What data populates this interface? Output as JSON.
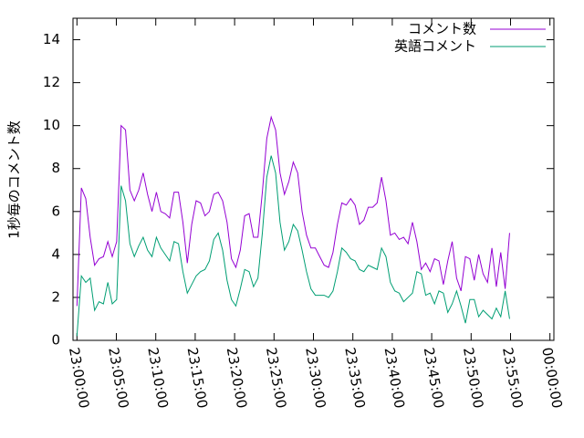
{
  "chart_data": {
    "type": "line",
    "ylabel": "1秒毎のコメント数",
    "legend": "top right",
    "x": [
      0,
      0.56,
      1.12,
      1.68,
      2.24,
      2.8,
      3.36,
      3.92,
      4.48,
      5.04,
      5.6,
      6.16,
      6.72,
      7.28,
      7.84,
      8.4,
      8.96,
      9.52,
      10.08,
      10.64,
      11.2,
      11.76,
      12.32,
      12.88,
      13.44,
      14,
      14.56,
      15.12,
      15.68,
      16.24,
      16.8,
      17.36,
      17.92,
      18.48,
      19.04,
      19.6,
      20.16,
      20.72,
      21.28,
      21.84,
      22.4,
      22.96,
      23.52,
      24.08,
      24.64,
      25.2,
      25.76,
      26.32,
      26.88,
      27.44,
      28,
      28.56,
      29.12,
      29.68,
      30.24,
      30.8,
      31.36,
      31.92,
      32.48,
      33.04,
      33.6,
      34.16,
      34.72,
      35.28,
      35.84,
      36.4,
      36.96,
      37.52,
      38.08,
      38.64,
      39.2,
      39.76,
      40.32,
      40.88,
      41.44,
      42,
      42.56,
      43.12,
      43.68,
      44.24,
      44.8,
      45.36,
      45.92,
      46.48,
      47.04,
      47.6,
      48.16,
      48.72,
      49.28,
      49.84,
      50.4,
      50.96,
      51.52,
      52.08,
      52.64,
      53.2,
      53.76,
      54.32,
      54.88
    ],
    "series": [
      {
        "name": "コメント数",
        "color": "#9400d3",
        "values": [
          1.6,
          7.1,
          6.6,
          4.8,
          3.5,
          3.8,
          3.9,
          4.6,
          3.9,
          4.6,
          10.0,
          9.8,
          7.0,
          6.5,
          7.0,
          7.8,
          6.8,
          6.0,
          6.9,
          6.0,
          5.9,
          5.7,
          6.9,
          6.9,
          5.5,
          3.6,
          5.4,
          6.5,
          6.4,
          5.8,
          6.0,
          6.8,
          6.9,
          6.5,
          5.5,
          3.8,
          3.4,
          4.2,
          5.8,
          5.9,
          4.8,
          4.8,
          6.9,
          9.4,
          10.4,
          9.8,
          7.8,
          6.8,
          7.4,
          8.3,
          7.8,
          6.0,
          4.9,
          4.3,
          4.3,
          3.9,
          3.5,
          3.4,
          4.1,
          5.4,
          6.4,
          6.3,
          6.6,
          6.3,
          5.4,
          5.6,
          6.2,
          6.2,
          6.4,
          7.6,
          6.5,
          4.9,
          5.0,
          4.7,
          4.8,
          4.5,
          5.5,
          4.6,
          3.3,
          3.6,
          3.2,
          3.8,
          3.7,
          2.6,
          3.7,
          4.6,
          2.9,
          2.3,
          3.9,
          3.8,
          2.8,
          4.0,
          3.1,
          2.7,
          4.3,
          2.5,
          4.1,
          2.4,
          5.0
        ]
      },
      {
        "name": "英語コメント",
        "color": "#009e73",
        "values": [
          0.2,
          3.0,
          2.7,
          2.9,
          1.4,
          1.8,
          1.7,
          2.7,
          1.7,
          1.9,
          7.2,
          6.5,
          4.5,
          3.9,
          4.4,
          4.8,
          4.2,
          3.9,
          4.8,
          4.3,
          4.0,
          3.7,
          4.6,
          4.5,
          3.2,
          2.2,
          2.6,
          3.0,
          3.2,
          3.3,
          3.7,
          4.7,
          5.0,
          4.2,
          2.8,
          1.9,
          1.6,
          2.4,
          3.3,
          3.2,
          2.5,
          2.9,
          5.0,
          7.6,
          8.6,
          7.8,
          5.5,
          4.2,
          4.6,
          5.4,
          5.1,
          4.2,
          3.2,
          2.4,
          2.1,
          2.1,
          2.1,
          2.0,
          2.3,
          3.2,
          4.3,
          4.1,
          3.8,
          3.7,
          3.3,
          3.2,
          3.5,
          3.4,
          3.3,
          4.3,
          3.9,
          2.7,
          2.3,
          2.2,
          1.8,
          2.0,
          2.2,
          3.2,
          3.1,
          2.1,
          2.2,
          1.7,
          2.3,
          2.2,
          1.3,
          1.7,
          2.3,
          1.6,
          0.8,
          1.9,
          1.9,
          1.1,
          1.4,
          1.2,
          1.0,
          1.5,
          1.1,
          2.3,
          1.0
        ]
      }
    ],
    "xlim": [
      -0.5,
      60.5
    ],
    "xticks": [
      {
        "value": 0,
        "label": "23:00:00"
      },
      {
        "value": 5,
        "label": "23:05:00"
      },
      {
        "value": 10,
        "label": "23:10:00"
      },
      {
        "value": 15,
        "label": "23:15:00"
      },
      {
        "value": 20,
        "label": "23:20:00"
      },
      {
        "value": 25,
        "label": "23:25:00"
      },
      {
        "value": 30,
        "label": "23:30:00"
      },
      {
        "value": 35,
        "label": "23:35:00"
      },
      {
        "value": 40,
        "label": "23:40:00"
      },
      {
        "value": 45,
        "label": "23:45:00"
      },
      {
        "value": 50,
        "label": "23:50:00"
      },
      {
        "value": 55,
        "label": "23:55:00"
      },
      {
        "value": 60,
        "label": "00:00:00"
      }
    ],
    "ylim": [
      0,
      15
    ],
    "yticks": [
      0,
      2,
      4,
      6,
      8,
      10,
      12,
      14
    ]
  }
}
